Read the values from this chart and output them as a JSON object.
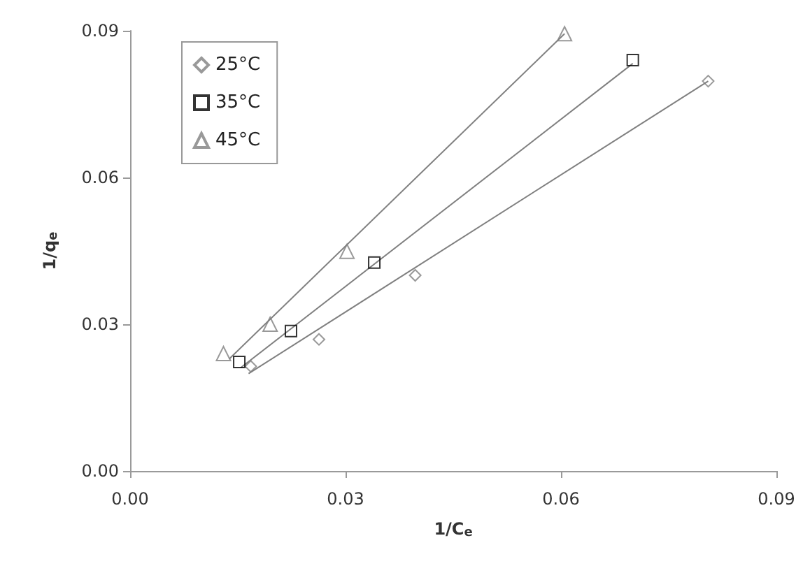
{
  "chart_data": {
    "type": "scatter",
    "xlabel": "1/C$_{e}$",
    "ylabel": "1/q$_{e}$",
    "xlim": [
      0,
      0.09
    ],
    "ylim": [
      0,
      0.09
    ],
    "xticks": [
      {
        "value": 0,
        "label": "0.00"
      },
      {
        "value": 0.03,
        "label": "0.03"
      },
      {
        "value": 0.06,
        "label": "0.06"
      },
      {
        "value": 0.09,
        "label": "0.09"
      }
    ],
    "yticks": [
      {
        "value": 0,
        "label": "0.00"
      },
      {
        "value": 0.03,
        "label": "0.03"
      },
      {
        "value": 0.06,
        "label": "0.06"
      },
      {
        "value": 0.09,
        "label": "0.09"
      }
    ],
    "grid": false,
    "legend": "top left",
    "series": [
      {
        "name": "25°C",
        "color": "#808080",
        "marker": "diamond",
        "x": [
          0.0168,
          0.0263,
          0.0397,
          0.0805
        ],
        "values": [
          0.0214,
          0.0269,
          0.04,
          0.0797
        ]
      },
      {
        "name": "35°C",
        "color": "#000000",
        "marker": "square",
        "x": [
          0.0152,
          0.0224,
          0.034,
          0.07
        ],
        "values": [
          0.0223,
          0.0286,
          0.0426,
          0.084
        ]
      },
      {
        "name": "45°C",
        "color": "#808080",
        "marker": "triangle",
        "x": [
          0.013,
          0.0195,
          0.0302,
          0.0605
        ],
        "values": [
          0.024,
          0.03,
          0.0449,
          0.0894
        ]
      },
      {
        "type": "line",
        "color": "#808080",
        "marker": "none",
        "x": [
          0.0165,
          0.0805
        ],
        "values": [
          0.0199,
          0.0797
        ]
      },
      {
        "type": "line",
        "color": "#808080",
        "marker": "none",
        "x": [
          0.0154,
          0.07
        ],
        "values": [
          0.0211,
          0.0833
        ]
      },
      {
        "type": "line",
        "color": "#808080",
        "marker": "none",
        "x": [
          0.0138,
          0.0605
        ],
        "values": [
          0.0229,
          0.0894
        ]
      }
    ]
  }
}
